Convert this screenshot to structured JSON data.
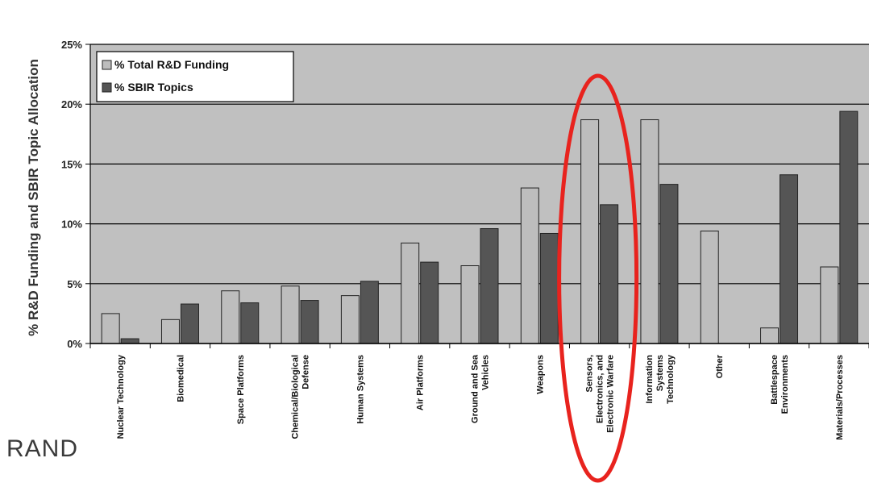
{
  "brand": "RAND",
  "chart_data": {
    "type": "bar",
    "title": "",
    "xlabel": "",
    "ylabel": "% R&D Funding and SBIR Topic Allocation",
    "ylim": [
      0,
      25
    ],
    "yticks": [
      "0%",
      "5%",
      "10%",
      "15%",
      "20%",
      "25%"
    ],
    "grid": true,
    "legend_position": "top-left",
    "categories": [
      [
        "Nuclear Technology"
      ],
      [
        "Biomedical"
      ],
      [
        "Space Platforms"
      ],
      [
        "Chemical/Biological",
        "Defense"
      ],
      [
        "Human Systems"
      ],
      [
        "Air Platforms"
      ],
      [
        "Ground and Sea",
        "Vehicles"
      ],
      [
        "Weapons"
      ],
      [
        "Sensors,",
        "Electronics, and",
        "Electronic Warfare"
      ],
      [
        "Information",
        "Systems",
        "Technology"
      ],
      [
        "Other"
      ],
      [
        "Battlespace",
        "Environments"
      ],
      [
        "Materials/Processes"
      ]
    ],
    "series": [
      {
        "name": "% Total R&D Funding",
        "color": "#bdbdbd",
        "values": [
          2.5,
          2.0,
          4.4,
          4.8,
          4.0,
          8.4,
          6.5,
          13.0,
          18.7,
          18.7,
          9.4,
          1.3,
          6.4
        ]
      },
      {
        "name": "% SBIR Topics",
        "color": "#555555",
        "values": [
          0.4,
          3.3,
          3.4,
          3.6,
          5.2,
          6.8,
          9.6,
          9.2,
          11.6,
          13.3,
          0,
          14.1,
          19.4
        ]
      }
    ],
    "highlight": {
      "category_index": 8,
      "color": "#e8231e"
    },
    "plot_background": "#c0c0c0"
  }
}
